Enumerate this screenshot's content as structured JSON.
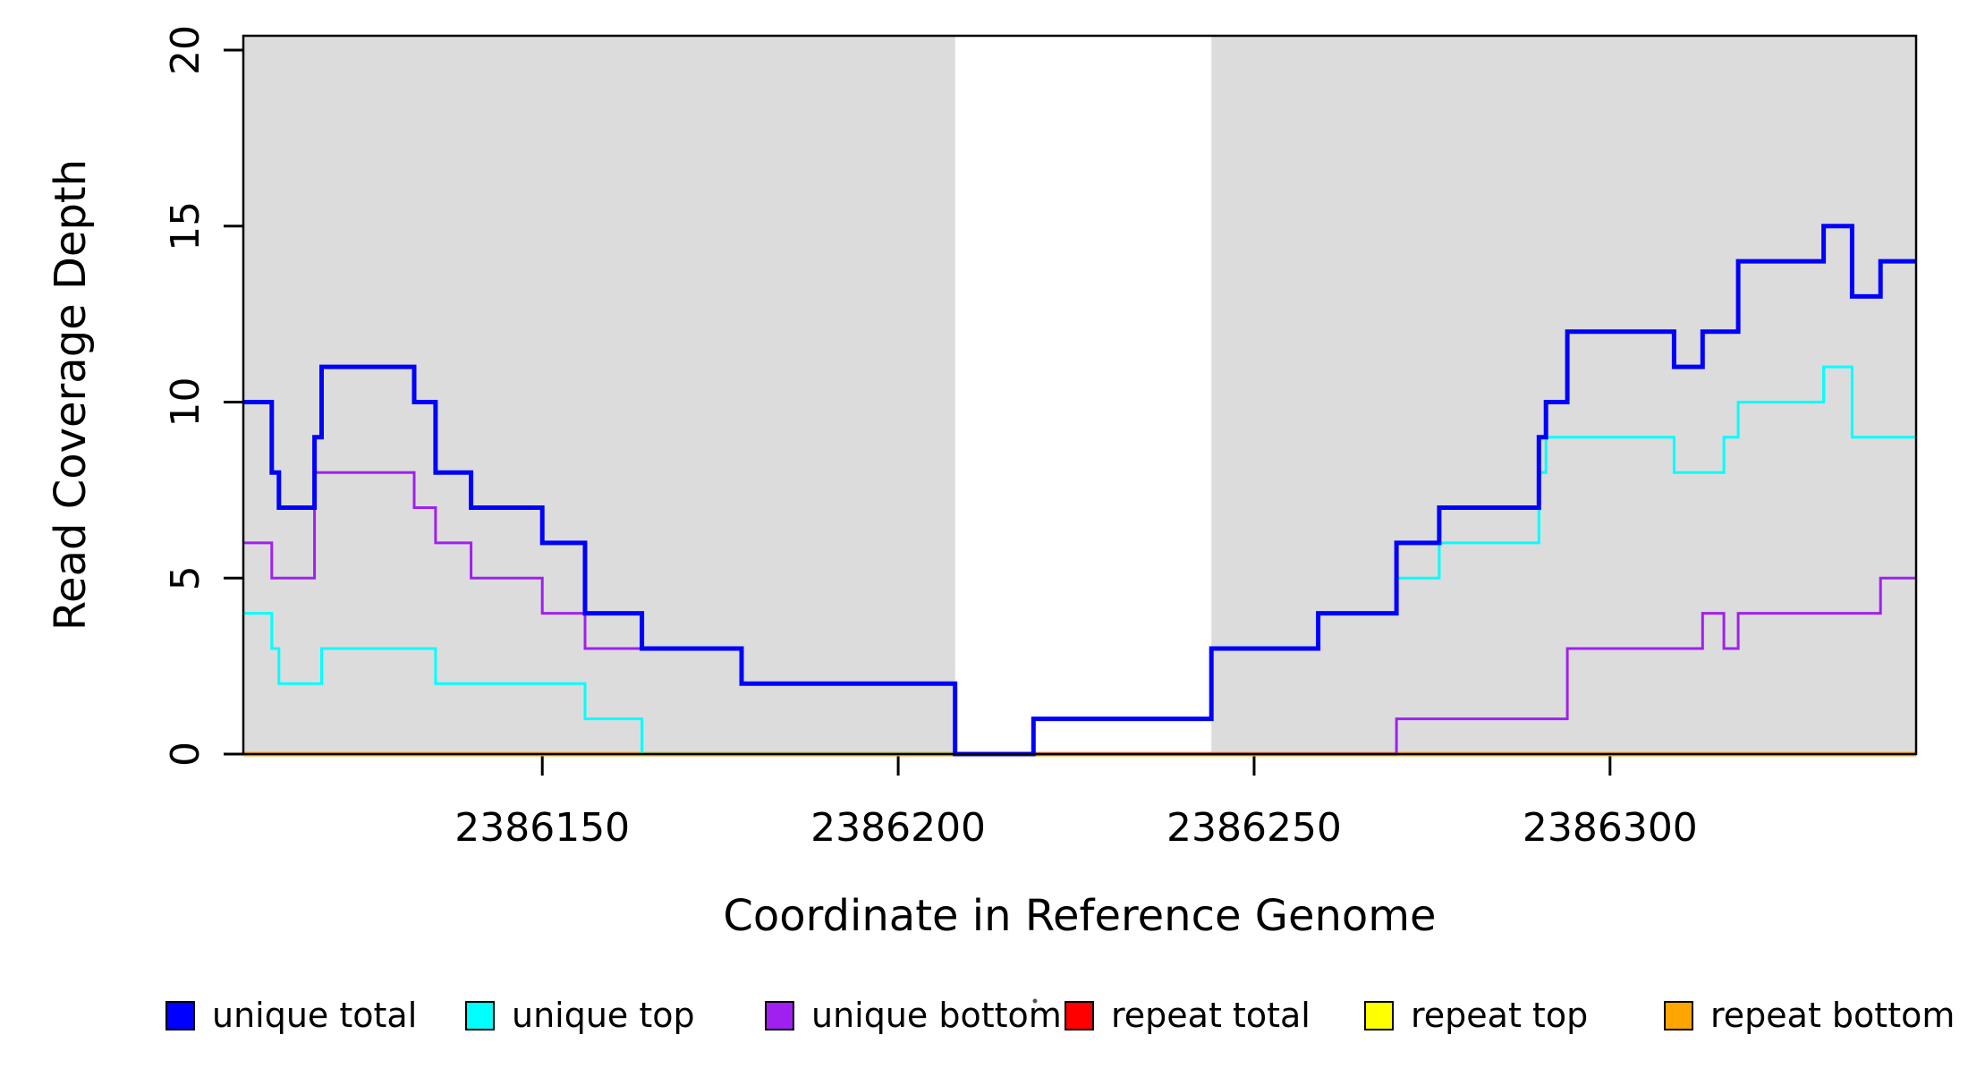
{
  "chart_data": {
    "type": "line",
    "subtype": "step-after-coverage-plot",
    "title": "",
    "xlabel": "Coordinate in Reference Genome",
    "ylabel": "Read Coverage Depth",
    "xlim": [
      2386108,
      2386343
    ],
    "ylim": [
      0,
      20.4
    ],
    "x_ticks": [
      2386150,
      2386200,
      2386250,
      2386300
    ],
    "y_ticks": [
      0,
      5,
      10,
      15,
      20
    ],
    "grid": false,
    "shade_color": "#DCDCDC",
    "shaded_regions": [
      {
        "from": 2386108,
        "to": 2386208
      },
      {
        "from": 2386244,
        "to": 2386343
      }
    ],
    "series": [
      {
        "name": "unique total",
        "color": "#0000FF",
        "stroke_width": 5,
        "points": [
          [
            2386108,
            10
          ],
          [
            2386112,
            8
          ],
          [
            2386113,
            7
          ],
          [
            2386118,
            9
          ],
          [
            2386119,
            11
          ],
          [
            2386132,
            10
          ],
          [
            2386135,
            8
          ],
          [
            2386140,
            7
          ],
          [
            2386150,
            6
          ],
          [
            2386156,
            4
          ],
          [
            2386164,
            3
          ],
          [
            2386178,
            2
          ],
          [
            2386208,
            0
          ],
          [
            2386219,
            1
          ],
          [
            2386244,
            3
          ],
          [
            2386259,
            4
          ],
          [
            2386270,
            6
          ],
          [
            2386276,
            7
          ],
          [
            2386290,
            9
          ],
          [
            2386291,
            10
          ],
          [
            2386294,
            12
          ],
          [
            2386309,
            11
          ],
          [
            2386313,
            12
          ],
          [
            2386318,
            14
          ],
          [
            2386330,
            15
          ],
          [
            2386334,
            13
          ],
          [
            2386338,
            14
          ]
        ]
      },
      {
        "name": "unique top",
        "color": "#00FFFF",
        "stroke_width": 3,
        "points": [
          [
            2386108,
            4
          ],
          [
            2386112,
            3
          ],
          [
            2386113,
            2
          ],
          [
            2386119,
            3
          ],
          [
            2386135,
            2
          ],
          [
            2386156,
            1
          ],
          [
            2386164,
            0
          ],
          [
            2386219,
            1
          ],
          [
            2386244,
            3
          ],
          [
            2386259,
            4
          ],
          [
            2386270,
            5
          ],
          [
            2386276,
            6
          ],
          [
            2386290,
            8
          ],
          [
            2386291,
            9
          ],
          [
            2386309,
            8
          ],
          [
            2386316,
            9
          ],
          [
            2386318,
            10
          ],
          [
            2386330,
            11
          ],
          [
            2386334,
            9
          ]
        ]
      },
      {
        "name": "unique bottom",
        "color": "#A020F0",
        "stroke_width": 3,
        "points": [
          [
            2386108,
            6
          ],
          [
            2386112,
            5
          ],
          [
            2386118,
            8
          ],
          [
            2386132,
            7
          ],
          [
            2386135,
            6
          ],
          [
            2386140,
            5
          ],
          [
            2386150,
            4
          ],
          [
            2386156,
            3
          ],
          [
            2386178,
            2
          ],
          [
            2386208,
            0
          ],
          [
            2386270,
            1
          ],
          [
            2386294,
            3
          ],
          [
            2386313,
            4
          ],
          [
            2386316,
            3
          ],
          [
            2386318,
            4
          ],
          [
            2386338,
            5
          ]
        ]
      },
      {
        "name": "repeat total",
        "color": "#FF0000",
        "stroke_width": 3,
        "points": [
          [
            2386108,
            0
          ]
        ]
      },
      {
        "name": "repeat top",
        "color": "#FFFF00",
        "stroke_width": 3,
        "points": [
          [
            2386108,
            0
          ]
        ]
      },
      {
        "name": "repeat bottom",
        "color": "#FFA500",
        "stroke_width": 5,
        "points": [
          [
            2386108,
            0
          ]
        ]
      }
    ],
    "legend": [
      {
        "label": "unique total",
        "color": "#0000FF"
      },
      {
        "label": "unique top",
        "color": "#00FFFF"
      },
      {
        "label": "unique bottom",
        "color": "#A020F0"
      },
      {
        "label": "repeat total",
        "color": "#FF0000"
      },
      {
        "label": "repeat top",
        "color": "#FFFF00"
      },
      {
        "label": "repeat bottom",
        "color": "#FFA500"
      }
    ],
    "legend_position": "bottom"
  }
}
